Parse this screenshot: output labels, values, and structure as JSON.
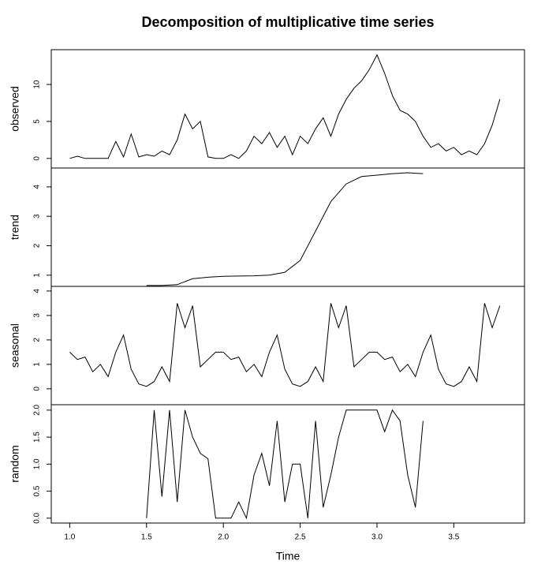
{
  "title": "Decomposition of multiplicative time series",
  "chart_data": [
    {
      "type": "line",
      "ylabel": "observed",
      "color": "#000000",
      "x": [
        1.0,
        1.05,
        1.1,
        1.15,
        1.2,
        1.25,
        1.3,
        1.35,
        1.4,
        1.45,
        1.5,
        1.55,
        1.6,
        1.65,
        1.7,
        1.75,
        1.8,
        1.85,
        1.9,
        1.95,
        2.0,
        2.05,
        2.1,
        2.15,
        2.2,
        2.25,
        2.3,
        2.35,
        2.4,
        2.45,
        2.5,
        2.55,
        2.6,
        2.65,
        2.7,
        2.75,
        2.8,
        2.85,
        2.9,
        2.95,
        3.0,
        3.05,
        3.1,
        3.15,
        3.2,
        3.25,
        3.3,
        3.35,
        3.4,
        3.45,
        3.5,
        3.55,
        3.6,
        3.65,
        3.7,
        3.75,
        3.8
      ],
      "values": [
        0,
        0.3,
        0,
        0,
        0,
        0,
        2.3,
        0.2,
        3.3,
        0.2,
        0.5,
        0.3,
        1.0,
        0.5,
        2.5,
        6.0,
        4.0,
        5.0,
        0.2,
        0,
        0,
        0.5,
        0,
        1.0,
        3.0,
        2.0,
        3.5,
        1.5,
        3.0,
        0.5,
        3.0,
        2.0,
        4.0,
        5.5,
        3.0,
        6.0,
        8.0,
        9.5,
        10.5,
        12.0,
        14.0,
        11.5,
        8.5,
        6.5,
        6.0,
        5.0,
        3.0,
        1.5,
        2.0,
        1.0,
        1.5,
        0.5,
        1.0,
        0.5,
        2.0,
        4.5,
        8.0
      ],
      "xlim": [
        0.88,
        3.96
      ],
      "ylim": [
        -1.3,
        14.7
      ],
      "yticks": [
        0,
        5,
        10
      ]
    },
    {
      "type": "line",
      "ylabel": "trend",
      "color": "#000000",
      "x": [
        1.5,
        1.6,
        1.7,
        1.8,
        1.9,
        2.0,
        2.1,
        2.2,
        2.3,
        2.4,
        2.5,
        2.6,
        2.7,
        2.8,
        2.9,
        3.0,
        3.1,
        3.2,
        3.3
      ],
      "values": [
        0.65,
        0.65,
        0.68,
        0.88,
        0.93,
        0.96,
        0.97,
        0.98,
        1.0,
        1.1,
        1.5,
        2.5,
        3.5,
        4.1,
        4.35,
        4.4,
        4.45,
        4.48,
        4.45
      ],
      "xlim": [
        0.88,
        3.96
      ],
      "ylim": [
        0.62,
        4.64
      ],
      "yticks": [
        1,
        2,
        3,
        4
      ]
    },
    {
      "type": "line",
      "ylabel": "seasonal",
      "color": "#000000",
      "x": [
        1.0,
        1.05,
        1.1,
        1.15,
        1.2,
        1.25,
        1.3,
        1.35,
        1.4,
        1.45,
        1.5,
        1.55,
        1.6,
        1.65,
        1.7,
        1.75,
        1.8,
        1.85,
        1.9,
        1.95,
        2.0,
        2.05,
        2.1,
        2.15,
        2.2,
        2.25,
        2.3,
        2.35,
        2.4,
        2.45,
        2.5,
        2.55,
        2.6,
        2.65,
        2.7,
        2.75,
        2.8,
        2.85,
        2.9,
        2.95,
        3.0,
        3.05,
        3.1,
        3.15,
        3.2,
        3.25,
        3.3,
        3.35,
        3.4,
        3.45,
        3.5,
        3.55,
        3.6,
        3.65,
        3.7,
        3.75,
        3.8
      ],
      "values": [
        1.5,
        1.2,
        1.3,
        0.7,
        1.0,
        0.5,
        1.5,
        2.2,
        0.8,
        0.2,
        0.1,
        0.3,
        0.9,
        0.3,
        3.5,
        2.5,
        3.4,
        0.9,
        1.2,
        1.5,
        1.5,
        1.2,
        1.3,
        0.7,
        1.0,
        0.5,
        1.5,
        2.2,
        0.8,
        0.2,
        0.1,
        0.3,
        0.9,
        0.3,
        3.5,
        2.5,
        3.4,
        0.9,
        1.2,
        1.5,
        1.5,
        1.2,
        1.3,
        0.7,
        1.0,
        0.5,
        1.5,
        2.2,
        0.8,
        0.2,
        0.1,
        0.3,
        0.9,
        0.3,
        3.5,
        2.5,
        3.4
      ],
      "xlim": [
        0.88,
        3.96
      ],
      "ylim": [
        -0.65,
        4.19
      ],
      "yticks": [
        0,
        1,
        2,
        3,
        4
      ]
    },
    {
      "type": "line",
      "ylabel": "random",
      "xlabel": "Time",
      "color": "#000000",
      "x": [
        1.5,
        1.55,
        1.6,
        1.65,
        1.7,
        1.75,
        1.8,
        1.85,
        1.9,
        1.95,
        2.0,
        2.05,
        2.1,
        2.15,
        2.2,
        2.25,
        2.3,
        2.35,
        2.4,
        2.45,
        2.5,
        2.55,
        2.6,
        2.65,
        2.7,
        2.75,
        2.8,
        2.85,
        2.9,
        2.95,
        3.0,
        3.05,
        3.1,
        3.15,
        3.2,
        3.25,
        3.3
      ],
      "values": [
        0,
        2.0,
        0.4,
        2.0,
        0.3,
        2.0,
        1.5,
        1.2,
        1.1,
        0,
        0,
        0,
        0.3,
        0,
        0.8,
        1.2,
        0.6,
        1.8,
        0.3,
        1.0,
        1.0,
        0,
        1.8,
        0.2,
        0.8,
        1.5,
        2.0,
        2.0,
        2.0,
        2.0,
        2.0,
        1.6,
        2.0,
        1.8,
        0.8,
        0.2,
        1.8
      ],
      "xlim": [
        0.88,
        3.96
      ],
      "ylim": [
        -0.09,
        2.1
      ],
      "yticks": [
        {
          "value": 0,
          "label": "0.0"
        },
        0.5,
        {
          "value": 1,
          "label": "1.0"
        },
        1.5,
        {
          "value": 2,
          "label": "2.0"
        }
      ],
      "xticks": [
        {
          "value": 1,
          "label": "1.0"
        },
        1.5,
        {
          "value": 2,
          "label": "2.0"
        },
        2.5,
        {
          "value": 3,
          "label": "3.0"
        },
        3.5
      ]
    }
  ]
}
